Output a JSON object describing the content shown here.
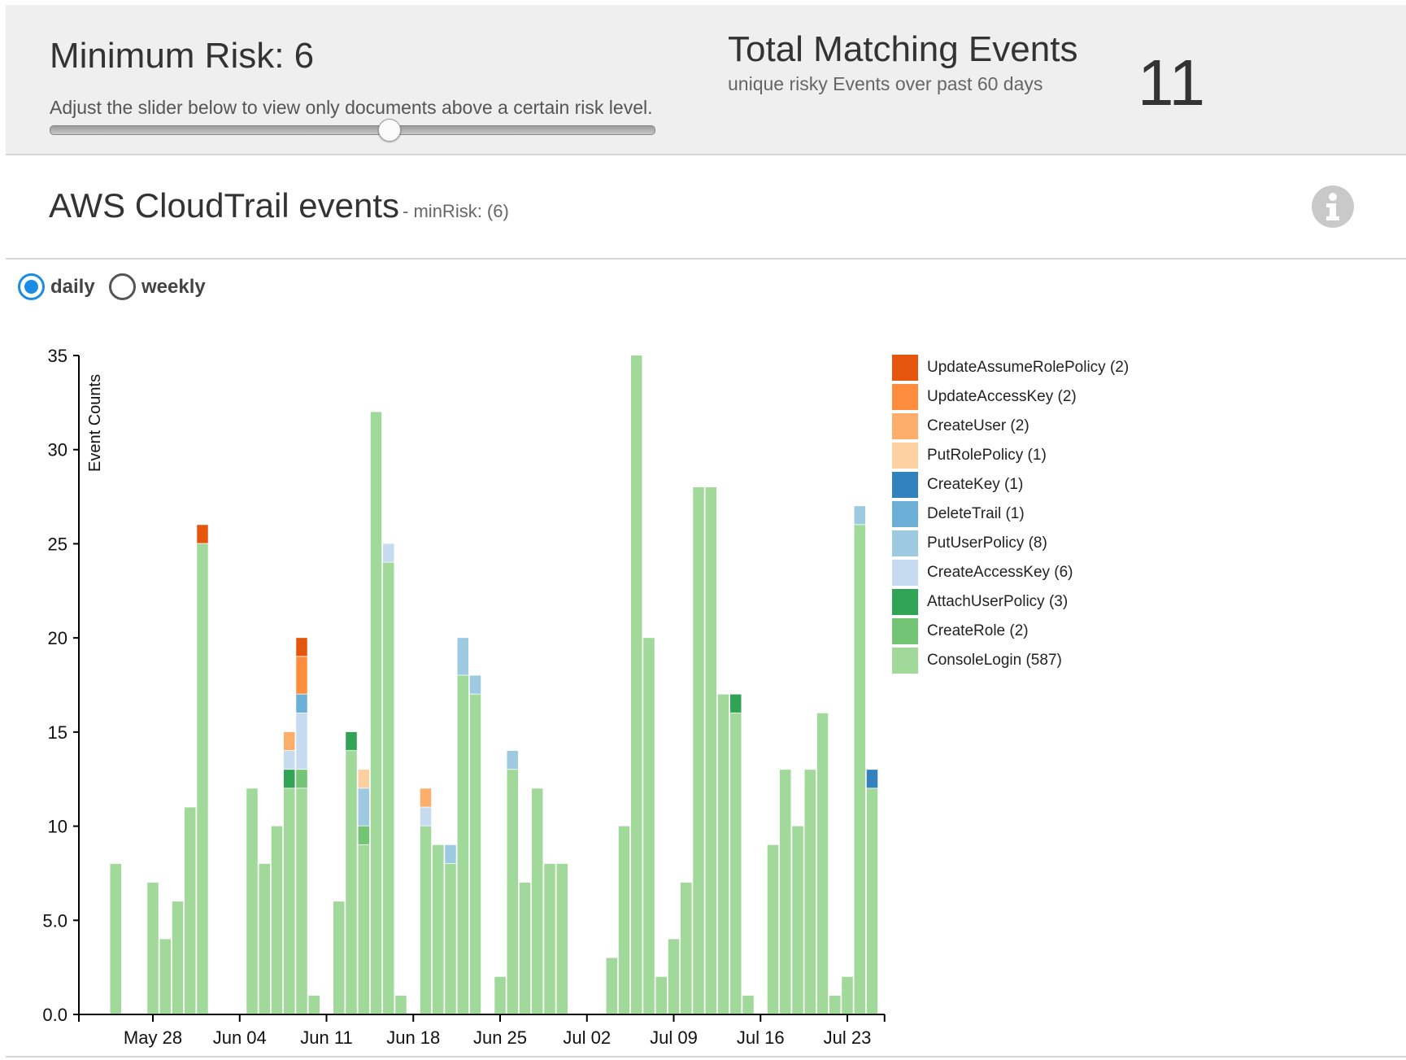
{
  "filter": {
    "title": "Minimum Risk: 6",
    "help_text": "Adjust the slider below to view only documents above a certain risk level.",
    "slider_value": 6,
    "slider_fraction": 0.56
  },
  "summary": {
    "title": "Total Matching Events",
    "subtitle": "unique risky Events over past 60 days",
    "value": "11"
  },
  "panel": {
    "title": "AWS CloudTrail events",
    "subtitle": "- minRisk: (6)",
    "info_icon": "info-icon"
  },
  "view_toggle": {
    "options": [
      {
        "label": "daily",
        "selected": true
      },
      {
        "label": "weekly",
        "selected": false
      }
    ]
  },
  "chart_data": {
    "type": "bar",
    "stacked": true,
    "ylabel": "Event Counts",
    "ylim": [
      0,
      35
    ],
    "yticks": [
      "0.0",
      "5.0",
      "10",
      "15",
      "20",
      "25",
      "30",
      "35"
    ],
    "x_start": "May 24",
    "x_tick_labels": [
      "May 28",
      "Jun 04",
      "Jun 11",
      "Jun 18",
      "Jun 25",
      "Jul 02",
      "Jul 09",
      "Jul 16",
      "Jul 23"
    ],
    "x_tick_day_index": [
      4,
      11,
      18,
      25,
      32,
      39,
      46,
      53,
      60
    ],
    "legend_position": "right",
    "series": [
      {
        "name": "UpdateAssumeRolePolicy (2)",
        "color": "#e6550d"
      },
      {
        "name": "UpdateAccessKey (2)",
        "color": "#fd8d3c"
      },
      {
        "name": "CreateUser (2)",
        "color": "#fdae6b"
      },
      {
        "name": "PutRolePolicy (1)",
        "color": "#fdd0a2"
      },
      {
        "name": "CreateKey (1)",
        "color": "#3182bd"
      },
      {
        "name": "DeleteTrail (1)",
        "color": "#6baed6"
      },
      {
        "name": "PutUserPolicy (8)",
        "color": "#9ecae1"
      },
      {
        "name": "CreateAccessKey (6)",
        "color": "#c6dbef"
      },
      {
        "name": "AttachUserPolicy (3)",
        "color": "#31a354"
      },
      {
        "name": "CreateRole (2)",
        "color": "#74c476"
      },
      {
        "name": "ConsoleLogin (587)",
        "color": "#a1d99b"
      }
    ],
    "days": [
      {
        "day": 0,
        "values": {
          "ConsoleLogin (587)": 0
        }
      },
      {
        "day": 1,
        "values": {
          "ConsoleLogin (587)": 8
        }
      },
      {
        "day": 2,
        "values": {
          "ConsoleLogin (587)": 0
        }
      },
      {
        "day": 3,
        "values": {
          "ConsoleLogin (587)": 0
        }
      },
      {
        "day": 4,
        "values": {
          "ConsoleLogin (587)": 7
        }
      },
      {
        "day": 5,
        "values": {
          "ConsoleLogin (587)": 4
        }
      },
      {
        "day": 6,
        "values": {
          "ConsoleLogin (587)": 6
        }
      },
      {
        "day": 7,
        "values": {
          "ConsoleLogin (587)": 11
        }
      },
      {
        "day": 8,
        "values": {
          "ConsoleLogin (587)": 25,
          "UpdateAssumeRolePolicy (2)": 1
        }
      },
      {
        "day": 9,
        "values": {
          "ConsoleLogin (587)": 0
        }
      },
      {
        "day": 10,
        "values": {
          "ConsoleLogin (587)": 0
        }
      },
      {
        "day": 11,
        "values": {
          "ConsoleLogin (587)": 0
        }
      },
      {
        "day": 12,
        "values": {
          "ConsoleLogin (587)": 12
        }
      },
      {
        "day": 13,
        "values": {
          "ConsoleLogin (587)": 8
        }
      },
      {
        "day": 14,
        "values": {
          "ConsoleLogin (587)": 10
        }
      },
      {
        "day": 15,
        "values": {
          "ConsoleLogin (587)": 12,
          "AttachUserPolicy (3)": 1,
          "CreateAccessKey (6)": 1,
          "CreateUser (2)": 1
        }
      },
      {
        "day": 16,
        "values": {
          "ConsoleLogin (587)": 12,
          "CreateRole (2)": 1,
          "CreateAccessKey (6)": 3,
          "DeleteTrail (1)": 1,
          "UpdateAccessKey (2)": 2,
          "UpdateAssumeRolePolicy (2)": 1
        }
      },
      {
        "day": 17,
        "values": {
          "ConsoleLogin (587)": 1
        }
      },
      {
        "day": 18,
        "values": {
          "ConsoleLogin (587)": 0
        }
      },
      {
        "day": 19,
        "values": {
          "ConsoleLogin (587)": 6
        }
      },
      {
        "day": 20,
        "values": {
          "ConsoleLogin (587)": 14,
          "AttachUserPolicy (3)": 1
        }
      },
      {
        "day": 21,
        "values": {
          "ConsoleLogin (587)": 9,
          "CreateRole (2)": 1,
          "PutUserPolicy (8)": 2,
          "PutRolePolicy (1)": 1
        }
      },
      {
        "day": 22,
        "values": {
          "ConsoleLogin (587)": 32
        }
      },
      {
        "day": 23,
        "values": {
          "ConsoleLogin (587)": 24,
          "CreateAccessKey (6)": 1
        }
      },
      {
        "day": 24,
        "values": {
          "ConsoleLogin (587)": 1
        }
      },
      {
        "day": 25,
        "values": {
          "ConsoleLogin (587)": 0
        }
      },
      {
        "day": 26,
        "values": {
          "ConsoleLogin (587)": 10,
          "CreateAccessKey (6)": 1,
          "CreateUser (2)": 1
        }
      },
      {
        "day": 27,
        "values": {
          "ConsoleLogin (587)": 9
        }
      },
      {
        "day": 28,
        "values": {
          "ConsoleLogin (587)": 8,
          "PutUserPolicy (8)": 1
        }
      },
      {
        "day": 29,
        "values": {
          "ConsoleLogin (587)": 18,
          "PutUserPolicy (8)": 2
        }
      },
      {
        "day": 30,
        "values": {
          "ConsoleLogin (587)": 17,
          "PutUserPolicy (8)": 1
        }
      },
      {
        "day": 31,
        "values": {
          "ConsoleLogin (587)": 0
        }
      },
      {
        "day": 32,
        "values": {
          "ConsoleLogin (587)": 2
        }
      },
      {
        "day": 33,
        "values": {
          "ConsoleLogin (587)": 13,
          "PutUserPolicy (8)": 1
        }
      },
      {
        "day": 34,
        "values": {
          "ConsoleLogin (587)": 7
        }
      },
      {
        "day": 35,
        "values": {
          "ConsoleLogin (587)": 12
        }
      },
      {
        "day": 36,
        "values": {
          "ConsoleLogin (587)": 8
        }
      },
      {
        "day": 37,
        "values": {
          "ConsoleLogin (587)": 8
        }
      },
      {
        "day": 38,
        "values": {
          "ConsoleLogin (587)": 0
        }
      },
      {
        "day": 39,
        "values": {
          "ConsoleLogin (587)": 0
        }
      },
      {
        "day": 40,
        "values": {
          "ConsoleLogin (587)": 0
        }
      },
      {
        "day": 41,
        "values": {
          "ConsoleLogin (587)": 3
        }
      },
      {
        "day": 42,
        "values": {
          "ConsoleLogin (587)": 10
        }
      },
      {
        "day": 43,
        "values": {
          "ConsoleLogin (587)": 35
        }
      },
      {
        "day": 44,
        "values": {
          "ConsoleLogin (587)": 20
        }
      },
      {
        "day": 45,
        "values": {
          "ConsoleLogin (587)": 2
        }
      },
      {
        "day": 46,
        "values": {
          "ConsoleLogin (587)": 4
        }
      },
      {
        "day": 47,
        "values": {
          "ConsoleLogin (587)": 7
        }
      },
      {
        "day": 48,
        "values": {
          "ConsoleLogin (587)": 28
        }
      },
      {
        "day": 49,
        "values": {
          "ConsoleLogin (587)": 28
        }
      },
      {
        "day": 50,
        "values": {
          "ConsoleLogin (587)": 17
        }
      },
      {
        "day": 51,
        "values": {
          "ConsoleLogin (587)": 16,
          "AttachUserPolicy (3)": 1
        }
      },
      {
        "day": 52,
        "values": {
          "ConsoleLogin (587)": 1
        }
      },
      {
        "day": 53,
        "values": {
          "ConsoleLogin (587)": 0
        }
      },
      {
        "day": 54,
        "values": {
          "ConsoleLogin (587)": 9
        }
      },
      {
        "day": 55,
        "values": {
          "ConsoleLogin (587)": 13
        }
      },
      {
        "day": 56,
        "values": {
          "ConsoleLogin (587)": 10
        }
      },
      {
        "day": 57,
        "values": {
          "ConsoleLogin (587)": 13
        }
      },
      {
        "day": 58,
        "values": {
          "ConsoleLogin (587)": 16
        }
      },
      {
        "day": 59,
        "values": {
          "ConsoleLogin (587)": 1
        }
      },
      {
        "day": 60,
        "values": {
          "ConsoleLogin (587)": 2
        }
      },
      {
        "day": 61,
        "values": {
          "ConsoleLogin (587)": 26,
          "PutUserPolicy (8)": 1
        }
      },
      {
        "day": 62,
        "values": {
          "ConsoleLogin (587)": 12,
          "CreateKey (1)": 1
        }
      }
    ]
  }
}
